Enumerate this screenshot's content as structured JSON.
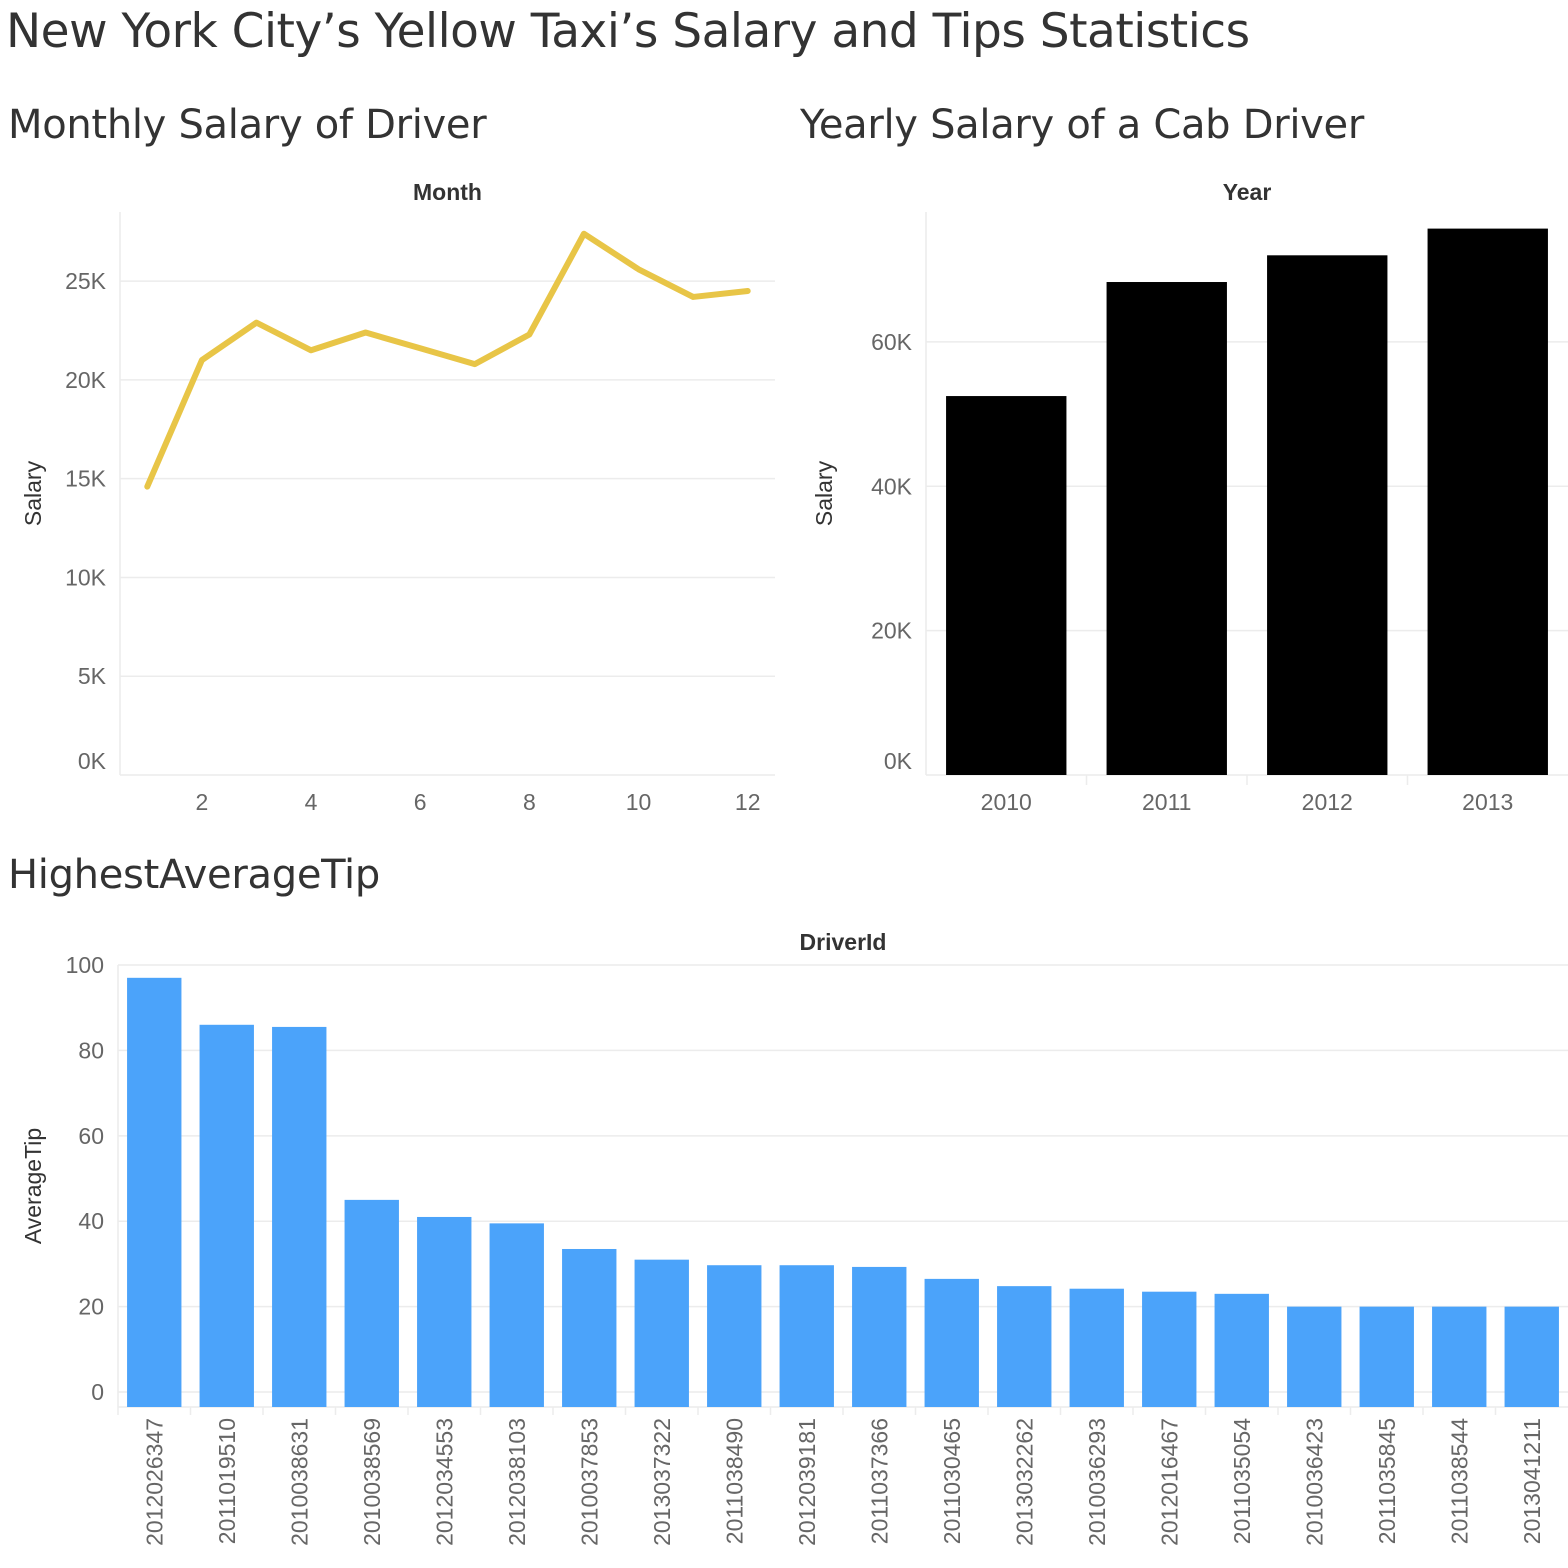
{
  "dashboard": {
    "title": "New York City’s Yellow Taxi’s Salary and Tips Statistics"
  },
  "chart_data": [
    {
      "id": "monthly",
      "type": "line",
      "title": "Monthly Salary of Driver",
      "xlabel": "Month",
      "ylabel": "Salary",
      "x": [
        1,
        2,
        3,
        4,
        5,
        6,
        7,
        8,
        9,
        10,
        11,
        12
      ],
      "values": [
        14600,
        21000,
        22900,
        21500,
        22400,
        21600,
        20800,
        22300,
        27400,
        25600,
        24200,
        24500
      ],
      "xticks": [
        2,
        4,
        6,
        8,
        10,
        12
      ],
      "yticks": [
        0,
        5000,
        10000,
        15000,
        20000,
        25000
      ],
      "ytick_labels": [
        "0K",
        "5K",
        "10K",
        "15K",
        "20K",
        "25K"
      ],
      "ylim": [
        0,
        28500
      ],
      "color": "#E8C547",
      "grid": true
    },
    {
      "id": "yearly",
      "type": "bar",
      "title": "Yearly Salary of a Cab Driver",
      "xlabel": "Year",
      "ylabel": "Salary",
      "categories": [
        "2010",
        "2011",
        "2012",
        "2013"
      ],
      "values": [
        52500,
        68300,
        72000,
        75700
      ],
      "yticks": [
        0,
        20000,
        40000,
        60000
      ],
      "ytick_labels": [
        "0K",
        "20K",
        "40K",
        "60K"
      ],
      "ylim": [
        0,
        78000
      ],
      "color": "#000000",
      "grid": true
    },
    {
      "id": "tips",
      "type": "bar",
      "title": "HighestAverageTip",
      "xlabel": "DriverId",
      "ylabel": "AverageTip",
      "categories": [
        "2012026347",
        "2011019510",
        "2010038631",
        "2010038569",
        "2012034553",
        "2012038103",
        "2010037853",
        "2013037322",
        "2011038490",
        "2012039181",
        "2011037366",
        "2011030465",
        "2013032262",
        "2010036293",
        "2012016467",
        "2011035054",
        "2010036423",
        "2011035845",
        "2011038544",
        "2013041211"
      ],
      "values": [
        97,
        86,
        85.5,
        45,
        41,
        39.5,
        33.5,
        31,
        29.7,
        29.7,
        29.3,
        26.5,
        24.8,
        24.2,
        23.5,
        23,
        20,
        20,
        20,
        20
      ],
      "yticks": [
        0,
        20,
        40,
        60,
        80,
        100
      ],
      "ytick_labels": [
        "0",
        "20",
        "40",
        "60",
        "80",
        "100"
      ],
      "ylim": [
        -3.5,
        100
      ],
      "color": "#4BA3FA",
      "grid": true
    }
  ]
}
